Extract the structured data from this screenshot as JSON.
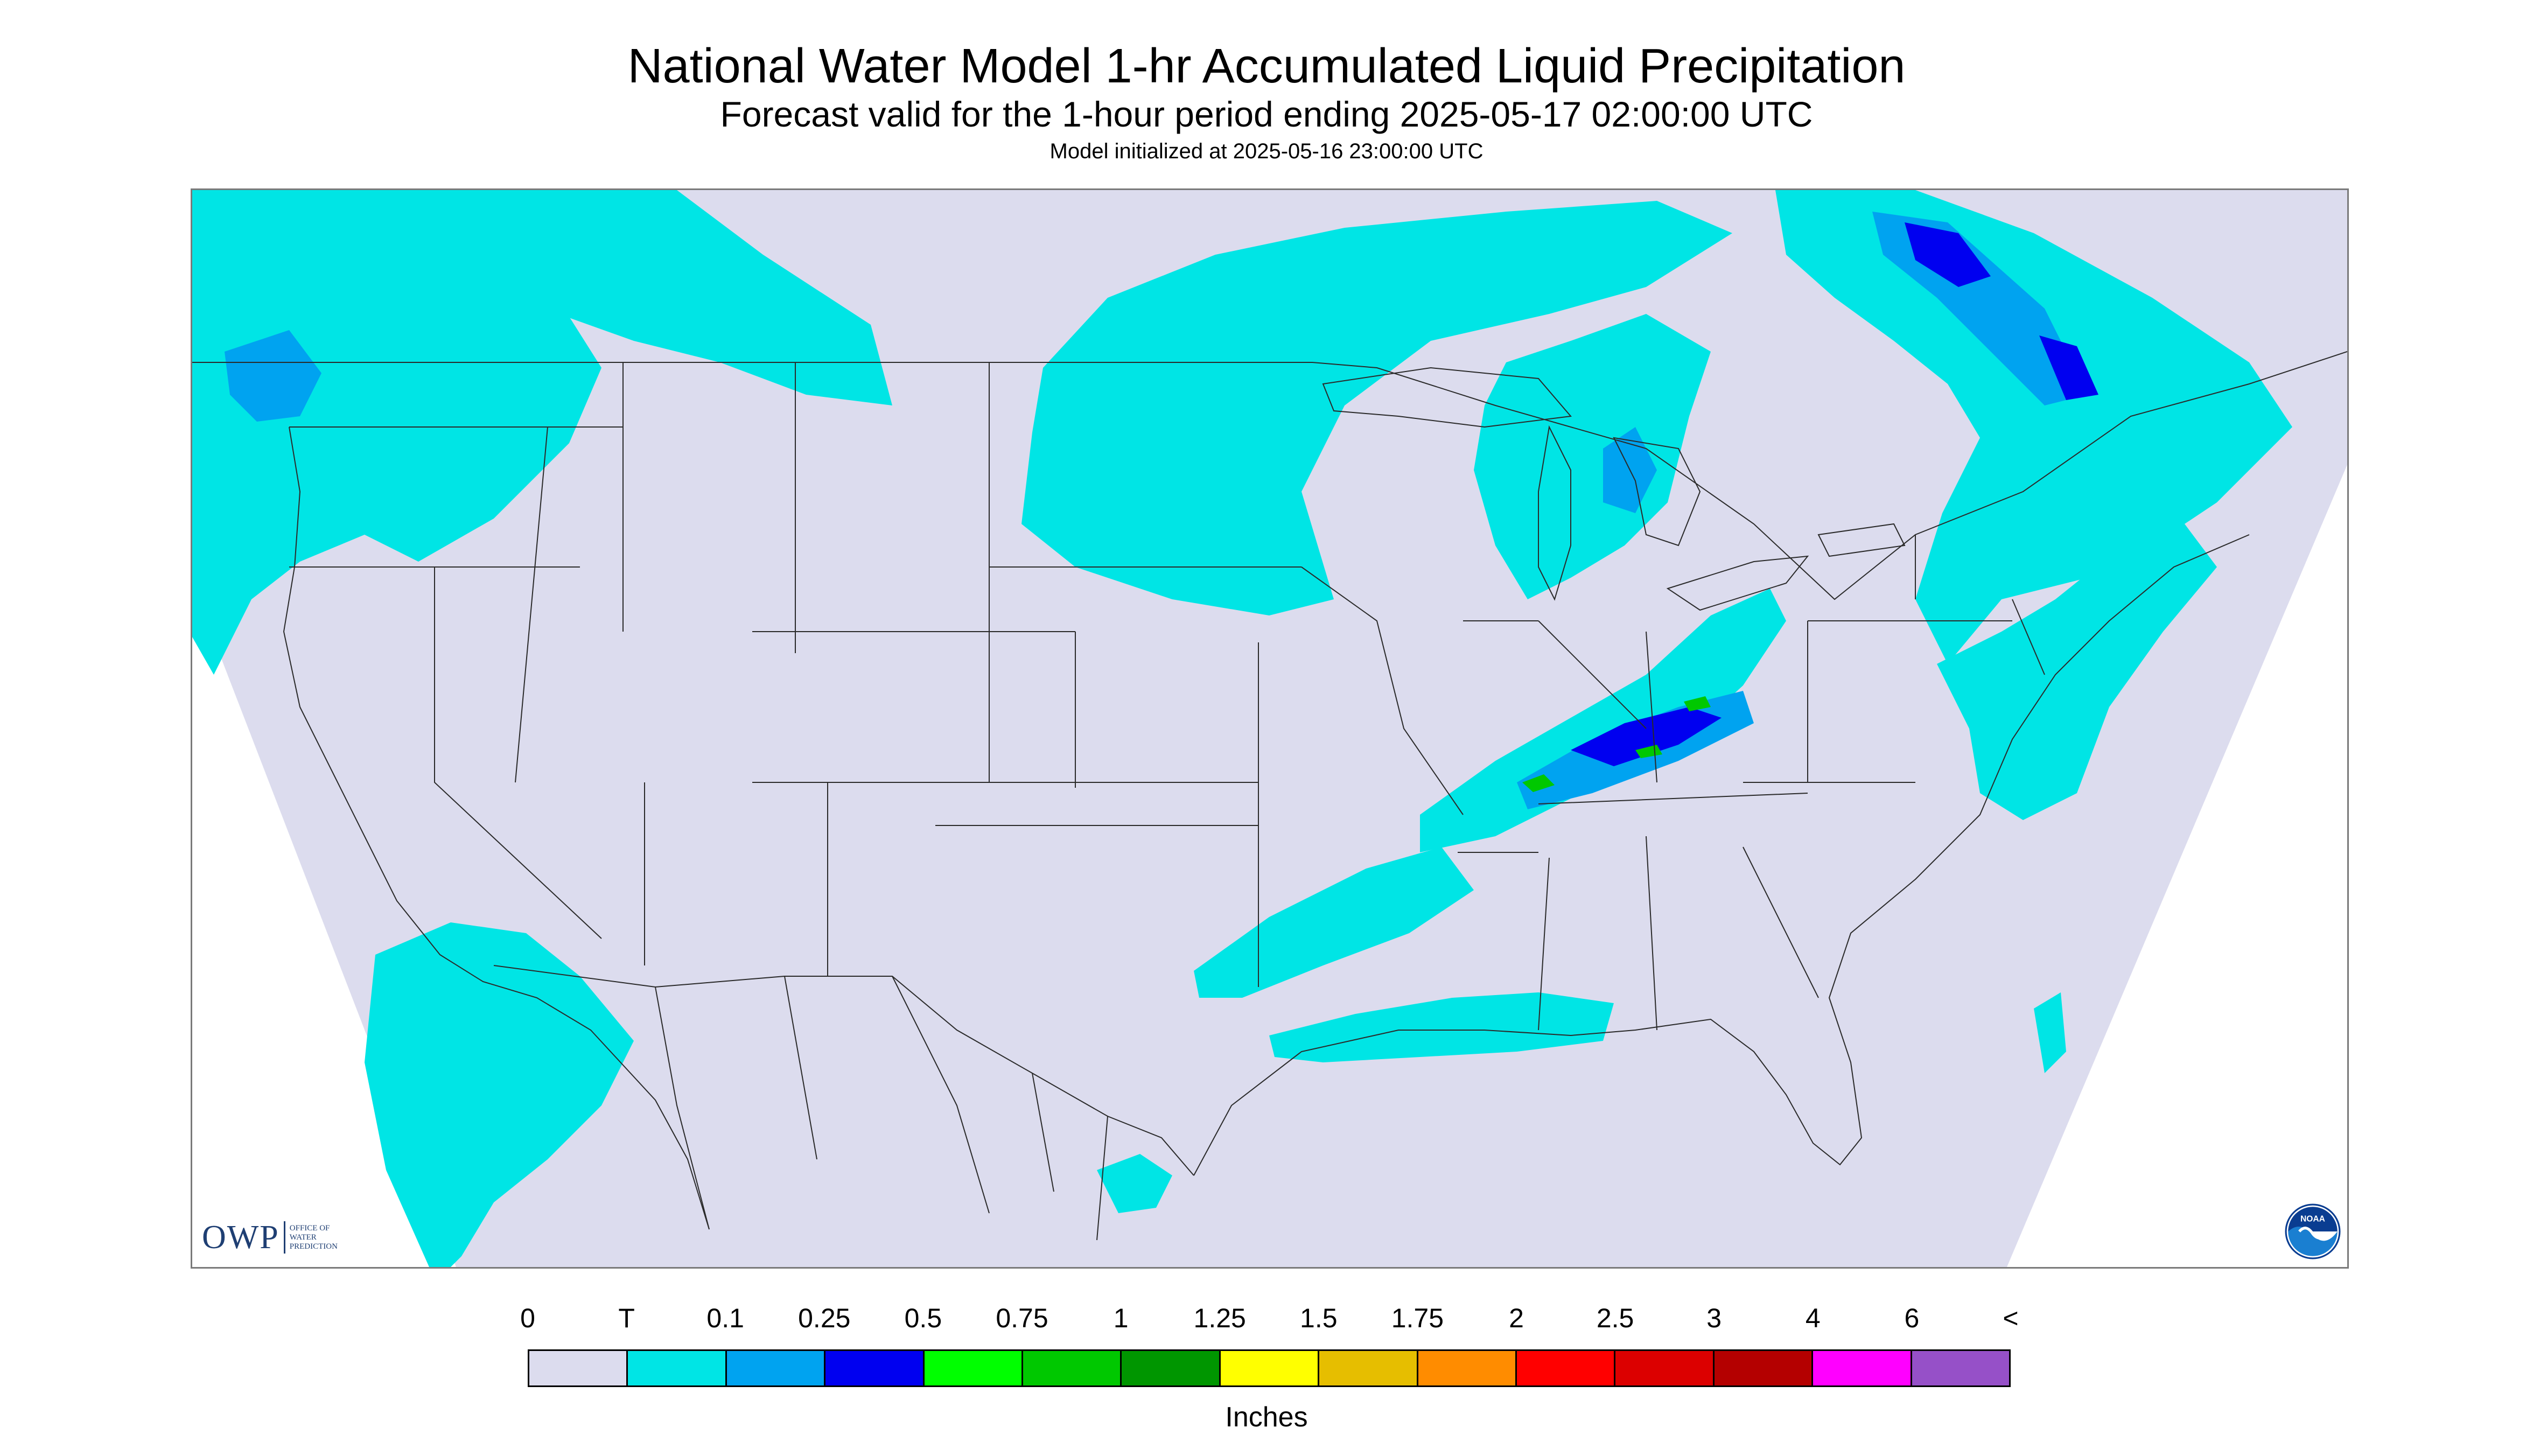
{
  "header": {
    "title": "National Water Model 1-hr Accumulated Liquid Precipitation",
    "subtitle": "Forecast valid for the 1-hour period ending 2025-05-17 02:00:00 UTC",
    "init": "Model initialized at 2025-05-16 23:00:00 UTC"
  },
  "map": {
    "background_color": "#ffffff",
    "domain_color": "#dcdcee",
    "boundary_color": "#2a2a2a",
    "precip_colors": {
      "trace": "#00e5e5",
      "light": "#00a3f0",
      "moderate": "#0000f0",
      "heavy": "#00c800"
    },
    "precip_regions": [
      {
        "name": "pacific-northwest",
        "level": "trace"
      },
      {
        "name": "pacific-northwest-core",
        "level": "light"
      },
      {
        "name": "northern-rockies",
        "level": "trace"
      },
      {
        "name": "upper-midwest-band",
        "level": "trace"
      },
      {
        "name": "great-lakes",
        "level": "trace"
      },
      {
        "name": "great-lakes-core",
        "level": "light"
      },
      {
        "name": "ohio-valley-band",
        "level": "trace"
      },
      {
        "name": "ohio-valley-core",
        "level": "moderate"
      },
      {
        "name": "ohio-valley-max",
        "level": "heavy"
      },
      {
        "name": "northeast",
        "level": "trace"
      },
      {
        "name": "quebec-core",
        "level": "moderate"
      },
      {
        "name": "southern-plains",
        "level": "trace"
      },
      {
        "name": "gulf-coast",
        "level": "trace"
      },
      {
        "name": "mid-atlantic",
        "level": "trace"
      },
      {
        "name": "baja-pacific",
        "level": "trace"
      },
      {
        "name": "mexico",
        "level": "trace"
      }
    ]
  },
  "logos": {
    "owp": {
      "text": "OWP",
      "subtext": "OFFICE OF\nWATER\nPREDICTION"
    },
    "noaa": {
      "text": "NOAA"
    }
  },
  "legend": {
    "unit": "Inches",
    "ticks": [
      "0",
      "T",
      "0.1",
      "0.25",
      "0.5",
      "0.75",
      "1",
      "1.25",
      "1.5",
      "1.75",
      "2",
      "2.5",
      "3",
      "4",
      "6",
      "<"
    ],
    "colors": [
      "#dcdcee",
      "#00e5e5",
      "#00a3f0",
      "#0000f0",
      "#00ff00",
      "#00c800",
      "#009600",
      "#ffff00",
      "#e6be00",
      "#ff8c00",
      "#ff0000",
      "#dc0000",
      "#b40000",
      "#ff00ff",
      "#9650c8"
    ]
  }
}
